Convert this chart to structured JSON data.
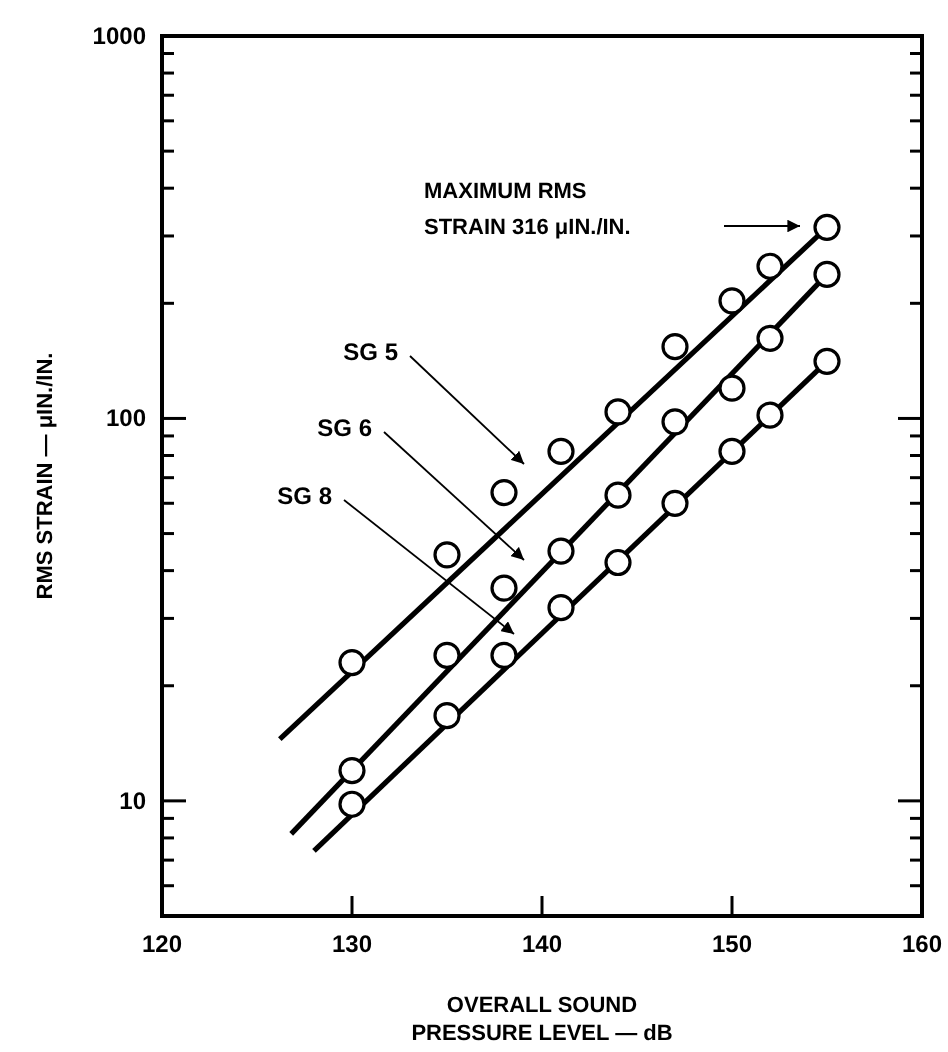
{
  "chart_data": {
    "type": "scatter",
    "xlabel": "OVERALL SOUND\nPRESSURE LEVEL — dB",
    "ylabel": "RMS STRAIN — μIN./IN.",
    "log": "y",
    "grid": false,
    "marker": "circle",
    "xlim": [
      120,
      160
    ],
    "xticks": [
      120,
      130,
      140,
      150,
      160
    ],
    "ylim": [
      5,
      1000
    ],
    "yticks": [
      {
        "value": 5,
        "label": null
      },
      {
        "value": 6,
        "label": null
      },
      {
        "value": 7,
        "label": null
      },
      {
        "value": 8,
        "label": null
      },
      {
        "value": 9,
        "label": null
      },
      10,
      {
        "value": 20,
        "label": null
      },
      {
        "value": 30,
        "label": null
      },
      {
        "value": 40,
        "label": null
      },
      {
        "value": 50,
        "label": null
      },
      {
        "value": 60,
        "label": null
      },
      {
        "value": 70,
        "label": null
      },
      {
        "value": 80,
        "label": null
      },
      {
        "value": 90,
        "label": null
      },
      100,
      {
        "value": 200,
        "label": null
      },
      {
        "value": 300,
        "label": null
      },
      {
        "value": 400,
        "label": null
      },
      {
        "value": 500,
        "label": null
      },
      {
        "value": 600,
        "label": null
      },
      {
        "value": 700,
        "label": null
      },
      {
        "value": 800,
        "label": null
      },
      {
        "value": 900,
        "label": null
      },
      1000
    ],
    "series": [
      {
        "type": "line",
        "marker": "none",
        "color": "#000000",
        "x": [
          126.2,
          155
        ],
        "values": [
          14.5,
          316
        ]
      },
      {
        "type": "line",
        "marker": "none",
        "color": "#000000",
        "x": [
          126.8,
          155
        ],
        "values": [
          8.2,
          238
        ]
      },
      {
        "type": "line",
        "marker": "none",
        "color": "#000000",
        "x": [
          128,
          155
        ],
        "values": [
          7.4,
          141
        ]
      },
      {
        "color": "#000000",
        "x": [
          130,
          135,
          138,
          141,
          144,
          147,
          150,
          152,
          155
        ],
        "values": [
          23,
          44,
          64,
          82,
          104,
          154,
          203,
          250,
          316
        ]
      },
      {
        "color": "#000000",
        "x": [
          130,
          135,
          138,
          141,
          144,
          147,
          150,
          152,
          155
        ],
        "values": [
          12,
          24,
          36,
          45,
          63,
          98,
          120,
          162,
          238
        ]
      },
      {
        "color": "#000000",
        "x": [
          130,
          135,
          138,
          141,
          144,
          147,
          150,
          152,
          155
        ],
        "values": [
          9.8,
          16.7,
          24,
          32,
          42,
          60,
          82,
          102,
          141
        ]
      }
    ],
    "annotations": [
      "SG 5",
      "SG 6",
      "SG 8",
      "MAXIMUM RMS\nSTRAIN 316 μIN./IN."
    ]
  }
}
